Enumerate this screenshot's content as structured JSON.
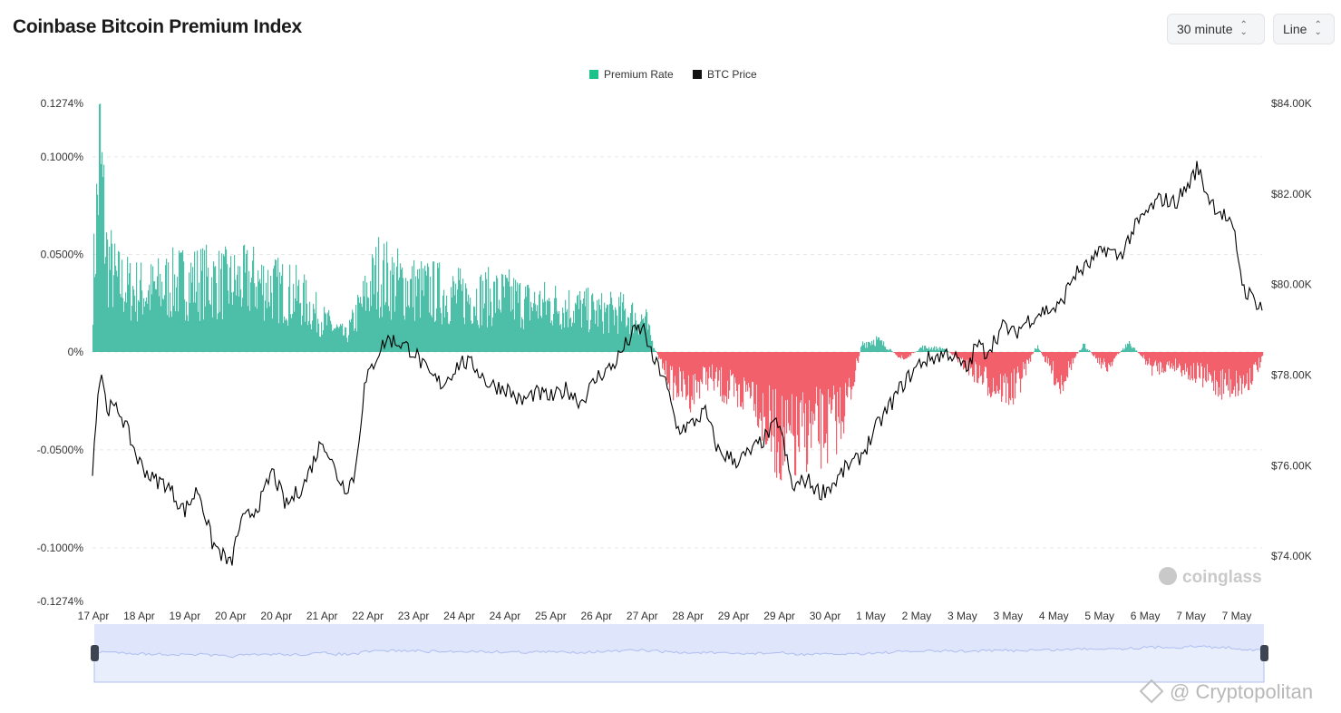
{
  "header": {
    "title": "Coinbase Bitcoin Premium Index"
  },
  "controls": {
    "interval": {
      "label": "30 minute",
      "icon": "chevron-updown-icon"
    },
    "chart_type": {
      "label": "Line",
      "icon": "chevron-updown-icon"
    }
  },
  "watermarks": {
    "chart_brand": "coinglass",
    "footer": "@ Cryptopolitan"
  },
  "colors": {
    "positive": "#4dbea8",
    "negative": "#f2606c",
    "price": "#000000",
    "navigator": "#dfe6fb",
    "navigator_line": "#aebdf0"
  },
  "chart_data": {
    "type": "area",
    "legend": [
      {
        "name": "Premium Rate",
        "color": "#1cc28a"
      },
      {
        "name": "BTC Price",
        "color": "#111111"
      }
    ],
    "legend_position": "top-center",
    "grid": true,
    "x_tick_labels": [
      "17 Apr",
      "18 Apr",
      "19 Apr",
      "20 Apr",
      "20 Apr",
      "21 Apr",
      "22 Apr",
      "23 Apr",
      "24 Apr",
      "24 Apr",
      "25 Apr",
      "26 Apr",
      "27 Apr",
      "28 Apr",
      "29 Apr",
      "29 Apr",
      "30 Apr",
      "1 May",
      "2 May",
      "3 May",
      "3 May",
      "4 May",
      "5 May",
      "6 May",
      "7 May",
      "7 May"
    ],
    "y_left_ticks": [
      "0.1274%",
      "0.1000%",
      "0.0500%",
      "0%",
      "-0.0500%",
      "-0.1000%",
      "-0.1274%"
    ],
    "y_left_range": [
      -0.1274,
      0.1274
    ],
    "y_right_ticks": [
      "$84.00K",
      "$82.00K",
      "$80.00K",
      "$78.00K",
      "$76.00K",
      "$74.00K"
    ],
    "y_right_range": [
      73000,
      84000
    ],
    "series": [
      {
        "name": "Premium Rate",
        "unit": "%",
        "x_day": [
          0,
          0.15,
          0.3,
          0.5,
          0.8,
          1.2,
          1.6,
          2.0,
          2.5,
          3.0,
          3.5,
          4.0,
          4.5,
          5.0,
          5.5,
          6.0,
          6.2,
          6.5,
          7.0,
          7.5,
          8.0,
          8.5,
          9.0,
          9.5,
          10.0,
          10.5,
          11.0,
          11.5,
          12.0,
          12.1,
          12.3,
          12.6,
          13.0,
          13.3,
          13.6,
          14.0,
          14.3,
          14.6,
          14.9,
          15.2,
          15.5,
          15.8,
          16.1,
          16.4,
          16.7,
          17.0,
          17.3,
          17.6,
          18.0,
          18.5,
          19.0,
          19.5,
          20.0,
          20.5,
          21.0,
          21.5,
          22.0,
          22.5,
          23.0,
          23.5,
          24.0,
          24.5,
          25.0,
          25.4
        ],
        "values": [
          0.04,
          0.127,
          0.06,
          0.045,
          0.04,
          0.038,
          0.042,
          0.045,
          0.045,
          0.043,
          0.045,
          0.04,
          0.035,
          0.02,
          0.01,
          0.04,
          0.05,
          0.045,
          0.04,
          0.038,
          0.035,
          0.035,
          0.035,
          0.03,
          0.03,
          0.028,
          0.025,
          0.025,
          0.02,
          0.01,
          -0.005,
          -0.02,
          -0.025,
          -0.015,
          -0.02,
          -0.03,
          -0.02,
          -0.045,
          -0.055,
          -0.06,
          -0.05,
          -0.05,
          -0.045,
          -0.03,
          0.005,
          0.008,
          0.002,
          -0.005,
          0.003,
          0.002,
          -0.01,
          -0.02,
          -0.025,
          0.004,
          -0.02,
          0.005,
          -0.01,
          0.006,
          -0.01,
          -0.008,
          -0.015,
          -0.02,
          -0.02,
          -0.005
        ]
      },
      {
        "name": "BTC Price",
        "unit": "USD",
        "x_day": [
          0,
          0.1,
          0.2,
          0.3,
          0.6,
          1.0,
          1.3,
          1.6,
          2.0,
          2.3,
          2.6,
          3.0,
          3.2,
          3.5,
          3.7,
          3.9,
          4.2,
          4.6,
          5.0,
          5.3,
          5.5,
          5.7,
          5.9,
          6.0,
          6.2,
          6.4,
          6.7,
          7.0,
          7.3,
          7.6,
          8.0,
          8.3,
          8.6,
          9.0,
          9.3,
          9.6,
          10.0,
          10.3,
          10.6,
          11.0,
          11.3,
          11.6,
          11.8,
          12.0,
          12.1,
          12.2,
          12.4,
          12.7,
          13.0,
          13.3,
          13.6,
          14.0,
          14.3,
          14.6,
          14.9,
          15.0,
          15.2,
          15.5,
          15.8,
          16.1,
          16.4,
          16.6,
          16.8,
          17.0,
          17.3,
          17.6,
          18.0,
          18.3,
          18.6,
          19.0,
          19.2,
          19.4,
          19.6,
          19.8,
          20.0,
          20.3,
          20.6,
          21.0,
          21.3,
          21.6,
          22.0,
          22.3,
          22.6,
          22.9,
          23.2,
          23.5,
          23.8,
          24.0,
          24.2,
          24.4,
          24.6,
          24.8,
          25.0,
          25.2,
          25.4
        ],
        "values": [
          75800,
          77500,
          78100,
          77300,
          77200,
          76100,
          75700,
          75600,
          75000,
          75500,
          74300,
          73800,
          74700,
          75000,
          75300,
          75900,
          75100,
          75600,
          76600,
          75800,
          75500,
          75800,
          77700,
          78000,
          78500,
          78800,
          78700,
          78500,
          78000,
          77800,
          78300,
          78200,
          77800,
          77700,
          77400,
          77600,
          77500,
          77700,
          77400,
          78000,
          78200,
          78700,
          79000,
          79000,
          78500,
          78300,
          78000,
          76800,
          76900,
          77200,
          76300,
          76100,
          76300,
          76600,
          77000,
          76500,
          75500,
          75700,
          75400,
          75600,
          76000,
          76100,
          76400,
          76800,
          77300,
          77800,
          78300,
          78400,
          78500,
          78100,
          78700,
          78500,
          78800,
          79100,
          78900,
          79200,
          79400,
          79500,
          80200,
          80400,
          80800,
          80600,
          81200,
          81600,
          81900,
          81800,
          82200,
          82600,
          82000,
          81700,
          81500,
          81100,
          79900,
          79700,
          79500
        ]
      }
    ],
    "navigator": {
      "visible": true,
      "range": "full"
    }
  }
}
